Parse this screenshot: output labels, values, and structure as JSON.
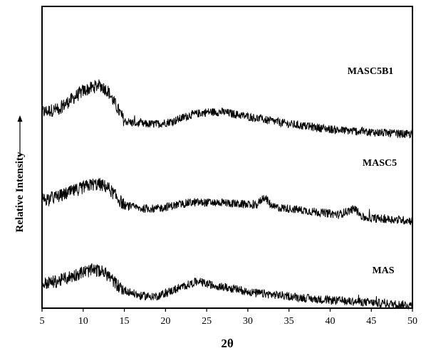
{
  "chart_data": {
    "type": "line",
    "xlabel": "2θ",
    "ylabel": "Relative Intensity",
    "xlim": [
      5,
      50
    ],
    "x_ticks": [
      "5",
      "10",
      "15",
      "20",
      "25",
      "30",
      "35",
      "40",
      "45",
      "50"
    ],
    "y_ticks_shown": false,
    "grid": false,
    "legend": "none",
    "line_color": "#000000",
    "series": [
      {
        "name": "MASC5B1",
        "x": [
          5,
          7,
          9,
          10,
          11,
          12,
          13,
          14,
          15,
          17,
          19,
          21,
          23,
          25,
          27,
          29,
          31,
          33,
          35,
          38,
          41,
          44,
          47,
          50
        ],
        "y": [
          0.65,
          0.66,
          0.7,
          0.72,
          0.73,
          0.74,
          0.72,
          0.67,
          0.62,
          0.61,
          0.61,
          0.62,
          0.64,
          0.65,
          0.65,
          0.64,
          0.63,
          0.62,
          0.61,
          0.6,
          0.59,
          0.585,
          0.58,
          0.575
        ]
      },
      {
        "name": "MASC5",
        "x": [
          5,
          7,
          9,
          10,
          11,
          12,
          13,
          14,
          15,
          17,
          19,
          21,
          23,
          25,
          27,
          29,
          31,
          32,
          33,
          35,
          38,
          41,
          43,
          44,
          47,
          50
        ],
        "y": [
          0.36,
          0.37,
          0.39,
          0.4,
          0.41,
          0.41,
          0.4,
          0.37,
          0.34,
          0.33,
          0.33,
          0.34,
          0.35,
          0.35,
          0.35,
          0.345,
          0.34,
          0.37,
          0.335,
          0.33,
          0.32,
          0.31,
          0.33,
          0.3,
          0.295,
          0.29
        ]
      },
      {
        "name": "MAS",
        "x": [
          5,
          7,
          9,
          10,
          11,
          12,
          13,
          14,
          15,
          17,
          19,
          21,
          23,
          24,
          25,
          27,
          29,
          31,
          33,
          35,
          38,
          41,
          44,
          47,
          50
        ],
        "y": [
          0.08,
          0.09,
          0.11,
          0.12,
          0.125,
          0.125,
          0.11,
          0.08,
          0.06,
          0.04,
          0.04,
          0.06,
          0.08,
          0.09,
          0.08,
          0.07,
          0.06,
          0.05,
          0.045,
          0.04,
          0.03,
          0.025,
          0.02,
          0.015,
          0.01
        ]
      }
    ]
  }
}
